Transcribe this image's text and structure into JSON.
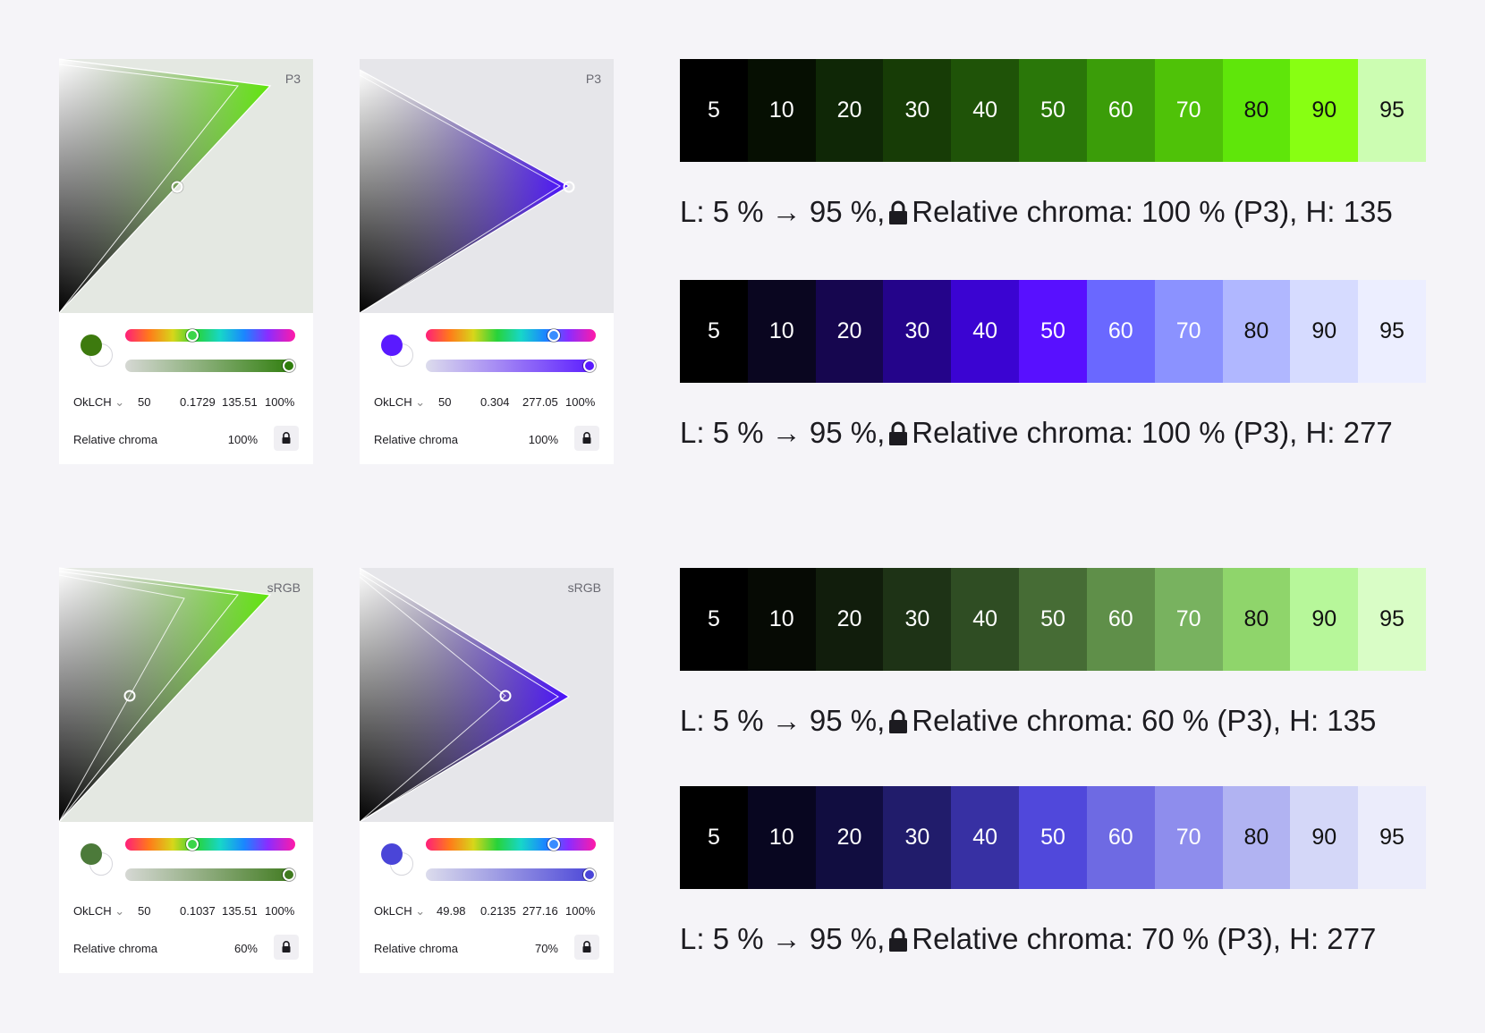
{
  "cards": [
    {
      "gamut_label": "P3",
      "swatch": "#3d7a0e",
      "hue_thumb_color": "#3bd54a",
      "chroma_end": "#2e7d0b",
      "mode": "OkLCH",
      "l": "50",
      "c": "0.1729",
      "h": "135.51",
      "alpha": "100%",
      "rel_label": "Relative chroma",
      "rel_value": "100%"
    },
    {
      "gamut_label": "P3",
      "swatch": "#5a1aff",
      "hue_thumb_color": "#3a8cff",
      "chroma_end": "#5a1aff",
      "mode": "OkLCH",
      "l": "50",
      "c": "0.304",
      "h": "277.05",
      "alpha": "100%",
      "rel_label": "Relative chroma",
      "rel_value": "100%"
    },
    {
      "gamut_label": "sRGB",
      "swatch": "#4c7a3a",
      "hue_thumb_color": "#3bd54a",
      "chroma_end": "#3f7a1e",
      "mode": "OkLCH",
      "l": "50",
      "c": "0.1037",
      "h": "135.51",
      "alpha": "100%",
      "rel_label": "Relative chroma",
      "rel_value": "60%"
    },
    {
      "gamut_label": "sRGB",
      "swatch": "#4a45d8",
      "hue_thumb_color": "#3a8cff",
      "chroma_end": "#4a45d8",
      "mode": "OkLCH",
      "l": "49.98",
      "c": "0.2135",
      "h": "277.16",
      "alpha": "100%",
      "rel_label": "Relative chroma",
      "rel_value": "70%"
    }
  ],
  "scales": [
    {
      "labels": [
        "5",
        "10",
        "20",
        "30",
        "40",
        "50",
        "60",
        "70",
        "80",
        "90",
        "95"
      ],
      "colors": [
        "#000000",
        "#060f02",
        "#0f2706",
        "#173c06",
        "#1f5308",
        "#2a7709",
        "#3b9d09",
        "#4fc208",
        "#5fe60a",
        "#88ff12",
        "#ccfdb2"
      ],
      "text_colors": [
        "#ffffff",
        "#ffffff",
        "#ffffff",
        "#ffffff",
        "#ffffff",
        "#ffffff",
        "#ffffff",
        "#ffffff",
        "#111111",
        "#111111",
        "#111111"
      ],
      "desc_prefix": "L: 5 % → 95 %,",
      "desc_suffix": "Relative chroma: 100 % (P3), H: 135"
    },
    {
      "labels": [
        "5",
        "10",
        "20",
        "30",
        "40",
        "50",
        "60",
        "70",
        "80",
        "90",
        "95"
      ],
      "colors": [
        "#000000",
        "#0a0620",
        "#16064f",
        "#24048a",
        "#3b04d2",
        "#5810ff",
        "#6a68ff",
        "#8b92ff",
        "#b0b7ff",
        "#d6dbff",
        "#eceeff"
      ],
      "text_colors": [
        "#ffffff",
        "#ffffff",
        "#ffffff",
        "#ffffff",
        "#ffffff",
        "#ffffff",
        "#ffffff",
        "#ffffff",
        "#111111",
        "#111111",
        "#111111"
      ],
      "desc_prefix": "L: 5 % → 95 %,",
      "desc_suffix": "Relative chroma: 100 % (P3), H: 277"
    },
    {
      "labels": [
        "5",
        "10",
        "20",
        "30",
        "40",
        "50",
        "60",
        "70",
        "80",
        "90",
        "95"
      ],
      "colors": [
        "#000000",
        "#060a04",
        "#111d0c",
        "#1e3316",
        "#2f4d23",
        "#466c35",
        "#5f8f49",
        "#78b25f",
        "#8fd56b",
        "#b7f79a",
        "#d9fdc6"
      ],
      "text_colors": [
        "#ffffff",
        "#ffffff",
        "#ffffff",
        "#ffffff",
        "#ffffff",
        "#ffffff",
        "#ffffff",
        "#ffffff",
        "#111111",
        "#111111",
        "#111111"
      ],
      "desc_prefix": "L: 5 % → 95 %,",
      "desc_suffix": "Relative chroma: 60 % (P3), H: 135"
    },
    {
      "labels": [
        "5",
        "10",
        "20",
        "30",
        "40",
        "50",
        "60",
        "70",
        "80",
        "90",
        "95"
      ],
      "colors": [
        "#000000",
        "#080620",
        "#110d40",
        "#211c6b",
        "#3730a3",
        "#5048db",
        "#6e6ae3",
        "#8e8ded",
        "#b1b3f2",
        "#d4d7f8",
        "#ebecfb"
      ],
      "text_colors": [
        "#ffffff",
        "#ffffff",
        "#ffffff",
        "#ffffff",
        "#ffffff",
        "#ffffff",
        "#ffffff",
        "#ffffff",
        "#111111",
        "#111111",
        "#111111"
      ],
      "desc_prefix": "L: 5 % → 95 %,",
      "desc_suffix": "Relative chroma: 70 % (P3), H: 277"
    }
  ]
}
